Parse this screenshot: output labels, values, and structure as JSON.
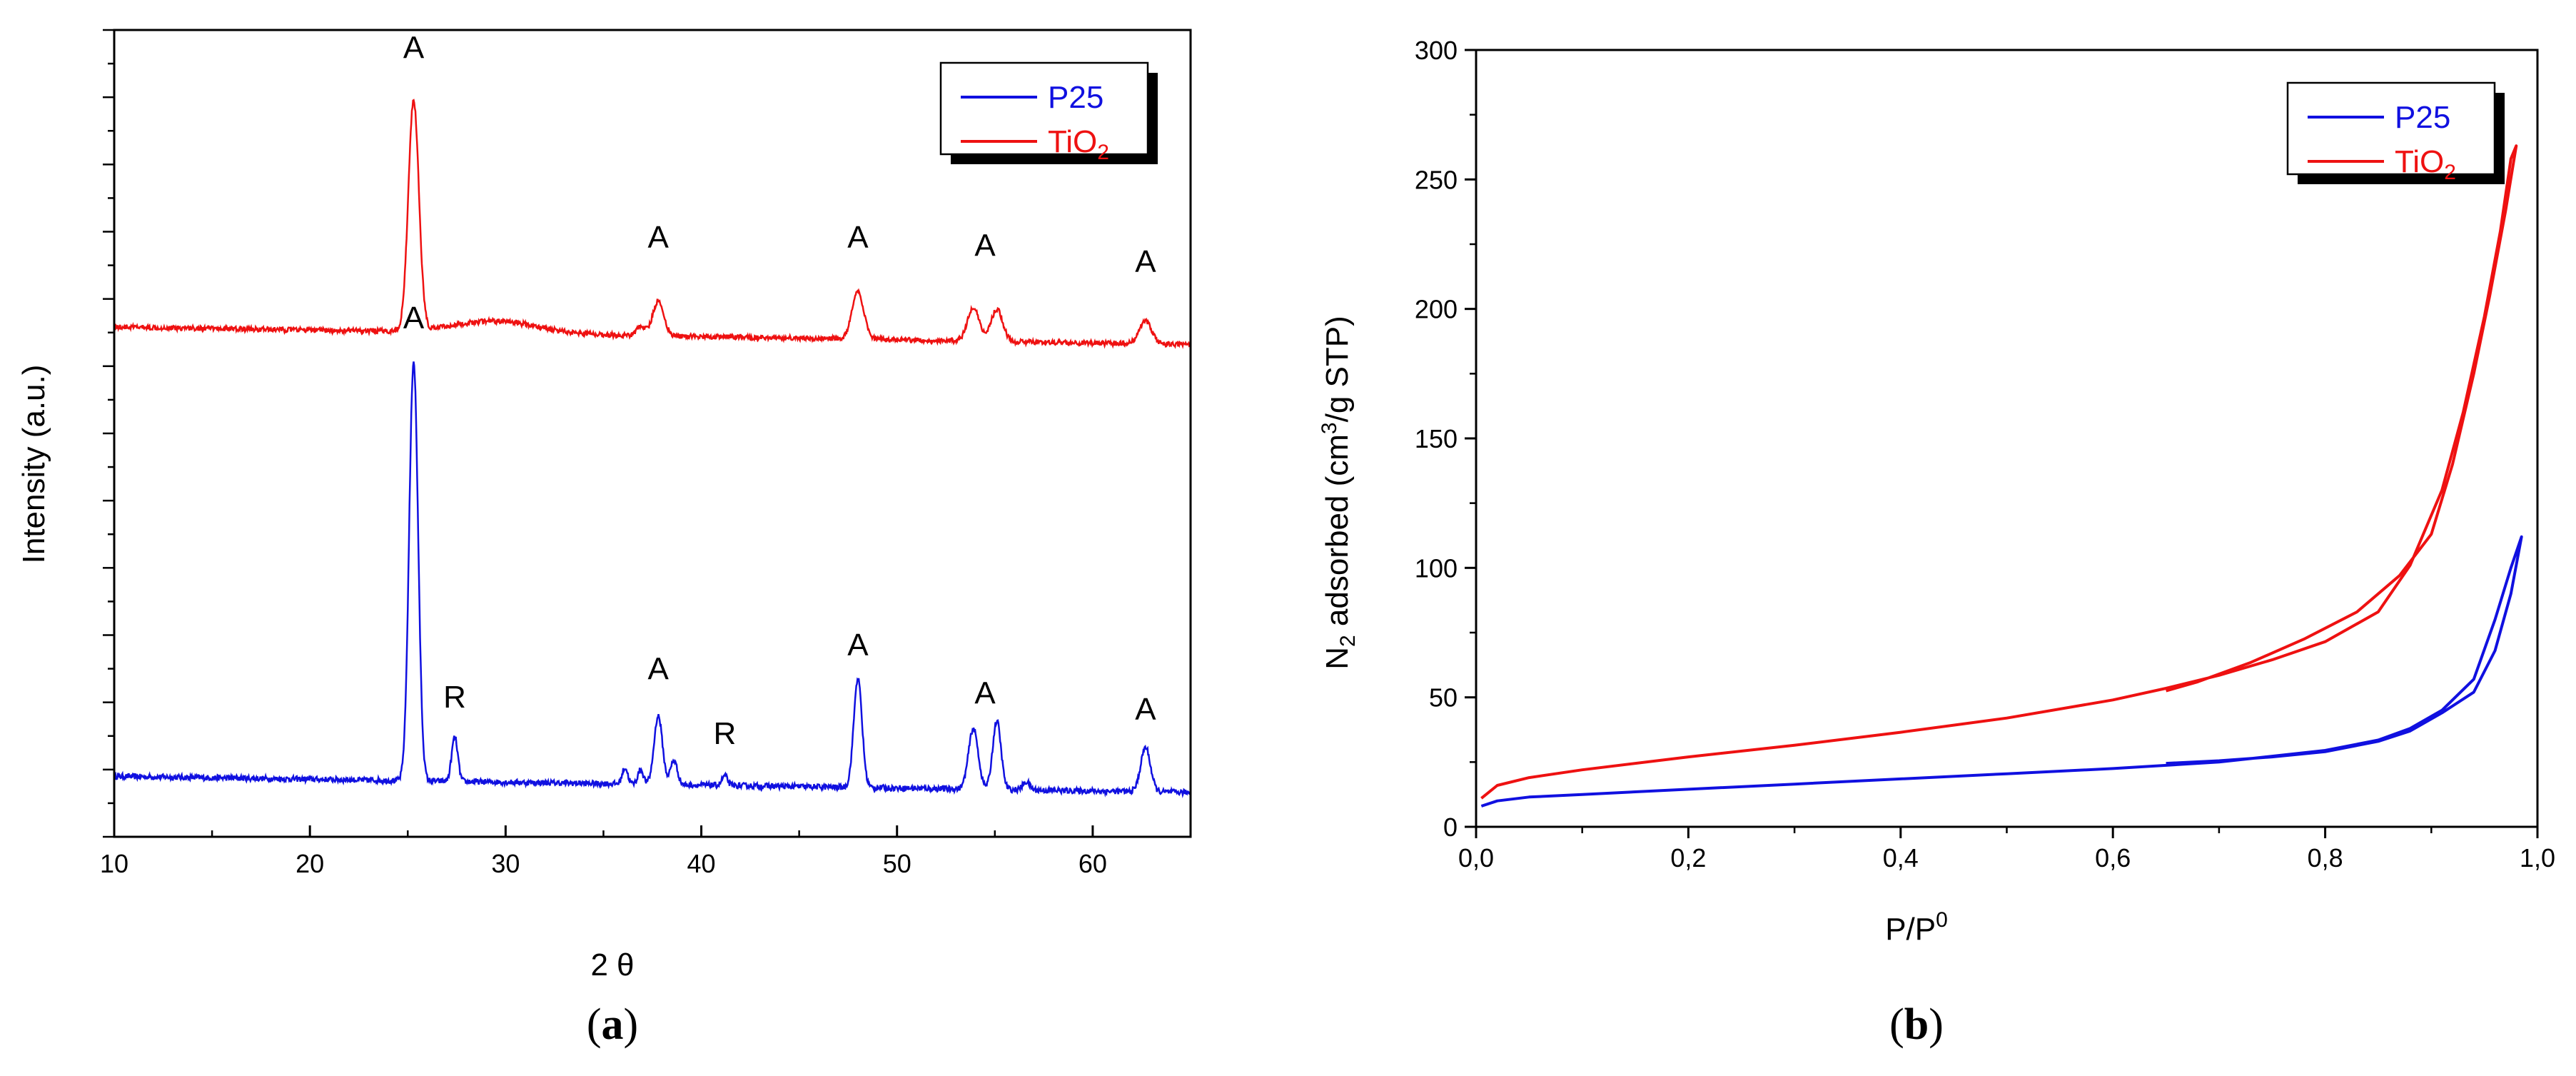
{
  "colors": {
    "P25": "#1010e0",
    "TiO2": "#ee1111",
    "axis": "#000000"
  },
  "chart_data": [
    {
      "id": "a",
      "type": "line",
      "caption_letter": "a",
      "xlabel_text": "2",
      "xlabel_symbol": "θ",
      "ylabel": "Intensity (a.u.)",
      "xlim": [
        10,
        65
      ],
      "ylim": [
        0,
        100
      ],
      "x_ticks": [
        10,
        20,
        30,
        40,
        50,
        60
      ],
      "y_tick_labels": "none",
      "legend": {
        "placement": "top-right",
        "entries": [
          {
            "series": "P25",
            "text": "P25",
            "sub": ""
          },
          {
            "series": "TiO2",
            "text": "TiO",
            "sub": "2"
          }
        ]
      },
      "series": [
        {
          "name": "P25",
          "baseline": 7.5,
          "baseline_end": 5.5,
          "noise": 0.35,
          "peaks": [
            {
              "x": 25.3,
              "h": 52,
              "w": 0.32
            },
            {
              "x": 27.4,
              "h": 5.5,
              "w": 0.22
            },
            {
              "x": 36.1,
              "h": 2.0,
              "w": 0.2
            },
            {
              "x": 36.9,
              "h": 1.8,
              "w": 0.2
            },
            {
              "x": 37.8,
              "h": 8.5,
              "w": 0.3
            },
            {
              "x": 38.6,
              "h": 3.0,
              "w": 0.25
            },
            {
              "x": 41.2,
              "h": 1.2,
              "w": 0.2
            },
            {
              "x": 48.0,
              "h": 13.5,
              "w": 0.3
            },
            {
              "x": 53.9,
              "h": 7.5,
              "w": 0.35
            },
            {
              "x": 55.1,
              "h": 8.5,
              "w": 0.3
            },
            {
              "x": 56.6,
              "h": 1.0,
              "w": 0.25
            },
            {
              "x": 62.7,
              "h": 5.5,
              "w": 0.35
            }
          ]
        },
        {
          "name": "TiO2",
          "baseline": 63.2,
          "baseline_end": 61.0,
          "noise": 0.3,
          "hump": {
            "x": 29.5,
            "h": 1.5,
            "w": 3.0
          },
          "peaks": [
            {
              "x": 25.3,
              "h": 28.5,
              "w": 0.38
            },
            {
              "x": 37.8,
              "h": 4.3,
              "w": 0.4
            },
            {
              "x": 36.9,
              "h": 1.2,
              "w": 0.3
            },
            {
              "x": 48.0,
              "h": 5.8,
              "w": 0.42
            },
            {
              "x": 53.9,
              "h": 4.2,
              "w": 0.42
            },
            {
              "x": 55.1,
              "h": 4.0,
              "w": 0.42
            },
            {
              "x": 62.7,
              "h": 2.8,
              "w": 0.45
            }
          ]
        }
      ],
      "annotations": [
        {
          "text": "A",
          "x": 25.3,
          "y": 96.5
        },
        {
          "text": "A",
          "x": 37.8,
          "y": 73
        },
        {
          "text": "A",
          "x": 48.0,
          "y": 73
        },
        {
          "text": "A",
          "x": 54.5,
          "y": 72
        },
        {
          "text": "A",
          "x": 62.7,
          "y": 70
        },
        {
          "text": "A",
          "x": 25.3,
          "y": 63
        },
        {
          "text": "R",
          "x": 27.4,
          "y": 16
        },
        {
          "text": "A",
          "x": 37.8,
          "y": 19.5
        },
        {
          "text": "R",
          "x": 41.2,
          "y": 11.5
        },
        {
          "text": "A",
          "x": 48.0,
          "y": 22.5
        },
        {
          "text": "A",
          "x": 54.5,
          "y": 16.5
        },
        {
          "text": "A",
          "x": 62.7,
          "y": 14.5
        }
      ]
    },
    {
      "id": "b",
      "type": "line",
      "caption_letter": "b",
      "xlabel_text": "P/P",
      "xlabel_sup": "0",
      "ylabel_pre": "N",
      "ylabel_sub": "2",
      "ylabel_mid": " adsorbed (cm",
      "ylabel_sup": "3",
      "ylabel_post": "/g STP)",
      "xlim": [
        0.0,
        1.0
      ],
      "ylim": [
        0,
        300
      ],
      "x_ticks": [
        "0,0",
        "0,2",
        "0,4",
        "0,6",
        "0,8",
        "1,0"
      ],
      "y_ticks": [
        0,
        50,
        100,
        150,
        200,
        250,
        300
      ],
      "legend": {
        "placement": "top-right",
        "entries": [
          {
            "series": "P25",
            "text": "P25",
            "sub": ""
          },
          {
            "series": "TiO2",
            "text": "TiO",
            "sub": "2"
          }
        ]
      },
      "series": [
        {
          "name": "P25",
          "x": [
            0.005,
            0.02,
            0.05,
            0.1,
            0.2,
            0.3,
            0.4,
            0.5,
            0.6,
            0.7,
            0.8,
            0.85,
            0.88,
            0.91,
            0.94,
            0.96,
            0.975,
            0.985,
            0.975,
            0.96,
            0.94,
            0.91,
            0.88,
            0.85,
            0.8,
            0.75,
            0.7,
            0.65
          ],
          "y": [
            8,
            10,
            11.5,
            12.5,
            14.5,
            16.5,
            18.5,
            20.5,
            22.5,
            25,
            29.5,
            33.5,
            38,
            45,
            57,
            80,
            100,
            112,
            90,
            68,
            52,
            44,
            37,
            33,
            29,
            27,
            25.5,
            24.5
          ]
        },
        {
          "name": "TiO2",
          "x": [
            0.005,
            0.02,
            0.05,
            0.1,
            0.2,
            0.3,
            0.4,
            0.5,
            0.6,
            0.65,
            0.7,
            0.75,
            0.8,
            0.85,
            0.88,
            0.91,
            0.93,
            0.95,
            0.965,
            0.975,
            0.98,
            0.97,
            0.955,
            0.94,
            0.92,
            0.9,
            0.87,
            0.83,
            0.78,
            0.73,
            0.68,
            0.65
          ],
          "y": [
            11,
            16,
            19,
            22,
            27,
            31.5,
            36.5,
            42,
            49,
            53.5,
            58.5,
            64.5,
            71.5,
            83,
            101,
            130,
            160,
            197,
            230,
            258,
            263,
            238,
            205,
            175,
            140,
            113,
            97,
            83,
            72.5,
            63.5,
            56,
            52.5
          ]
        }
      ]
    }
  ]
}
